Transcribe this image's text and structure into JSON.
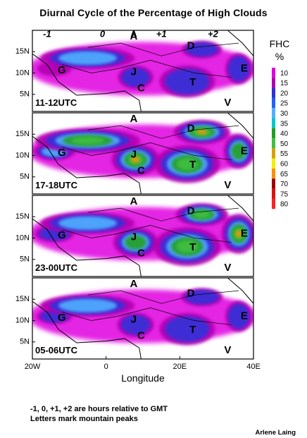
{
  "title": "Diurnal Cycle of the Percentage of High Clouds",
  "chart_data": [
    {
      "type": "heatmap",
      "panel_label": "11-12UTC",
      "timezone_labels": [
        "-1",
        "0",
        "A",
        "+1",
        "+2"
      ],
      "peaks": [
        "A",
        "D",
        "E",
        "G",
        "J",
        "C",
        "T",
        "V"
      ],
      "intensity": [
        0.25,
        0.55,
        0.3,
        0.45,
        0.4,
        0.3
      ]
    },
    {
      "type": "heatmap",
      "panel_label": "17-18UTC",
      "peaks": [
        "A",
        "D",
        "E",
        "G",
        "J",
        "C",
        "T",
        "V"
      ],
      "intensity": [
        0.55,
        0.75,
        0.85,
        0.75,
        0.6,
        0.9
      ]
    },
    {
      "type": "heatmap",
      "panel_label": "23-00UTC",
      "peaks": [
        "A",
        "D",
        "E",
        "G",
        "J",
        "C",
        "T",
        "V"
      ],
      "intensity": [
        0.45,
        0.55,
        0.7,
        0.8,
        0.85,
        0.75
      ]
    },
    {
      "type": "heatmap",
      "panel_label": "05-06UTC",
      "peaks": [
        "A",
        "D",
        "E",
        "G",
        "J",
        "C",
        "T",
        "V"
      ],
      "intensity": [
        0.3,
        0.55,
        0.35,
        0.45,
        0.4,
        0.35
      ]
    }
  ],
  "axes": {
    "x_ticks": [
      "20W",
      "0",
      "20E",
      "40E"
    ],
    "y_ticks": [
      "15N",
      "10N",
      "5N"
    ],
    "xlabel": "Longitude",
    "xlim": [
      -20,
      40
    ],
    "ylim": [
      1,
      20
    ]
  },
  "legend": {
    "title_line1": "FHC",
    "title_line2": "%",
    "items": [
      {
        "label": "10",
        "color": "#e000e0"
      },
      {
        "label": "15",
        "color": "#b000b0"
      },
      {
        "label": "20",
        "color": "#3030d8"
      },
      {
        "label": "25",
        "color": "#2060ff"
      },
      {
        "label": "30",
        "color": "#50b0ff"
      },
      {
        "label": "35",
        "color": "#00c8c8"
      },
      {
        "label": "40",
        "color": "#20a020"
      },
      {
        "label": "50",
        "color": "#40c040"
      },
      {
        "label": "55",
        "color": "#d8a000"
      },
      {
        "label": "60",
        "color": "#f0f000"
      },
      {
        "label": "65",
        "color": "#ff9000"
      },
      {
        "label": "70",
        "color": "#a00000"
      },
      {
        "label": "75",
        "color": "#e01010"
      },
      {
        "label": "80",
        "color": "#ff2020"
      }
    ]
  },
  "notes": {
    "line1": "-1, 0,  +1, +2 are hours relative to GMT",
    "line2": "Letters mark mountain peaks"
  },
  "author": "Arlene Laing"
}
